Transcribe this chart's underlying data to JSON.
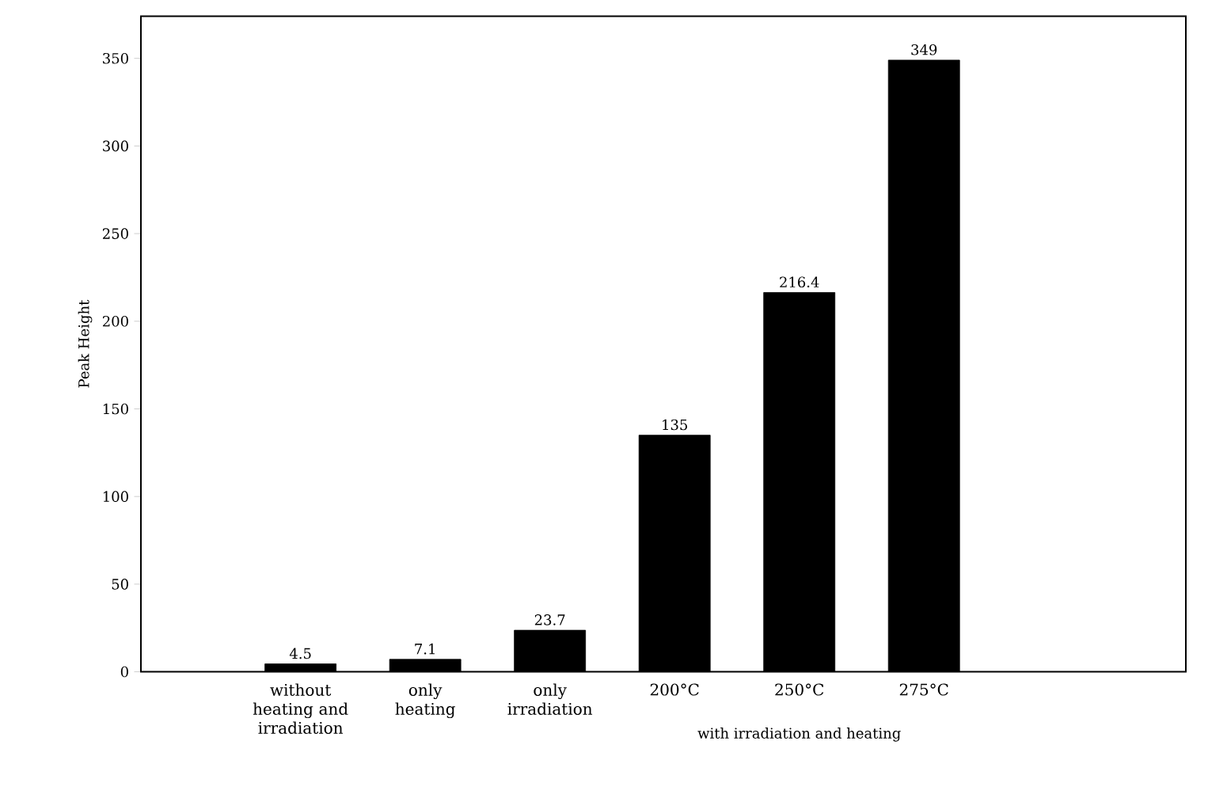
{
  "chart_data": {
    "type": "bar",
    "ylabel": "Peak Height",
    "categories": [
      "without heating and irradiation",
      "only heating",
      "only irradiation",
      "200°C",
      "250°C",
      "275°C"
    ],
    "values": [
      4.5,
      7.1,
      23.7,
      135,
      216.4,
      349
    ],
    "color": "#000000",
    "data_labels": true,
    "ylim": [
      0,
      374
    ],
    "yticks": [
      0,
      50,
      100,
      150,
      200,
      250,
      300,
      350
    ],
    "annotations": [
      "with irradiation and heating"
    ]
  }
}
